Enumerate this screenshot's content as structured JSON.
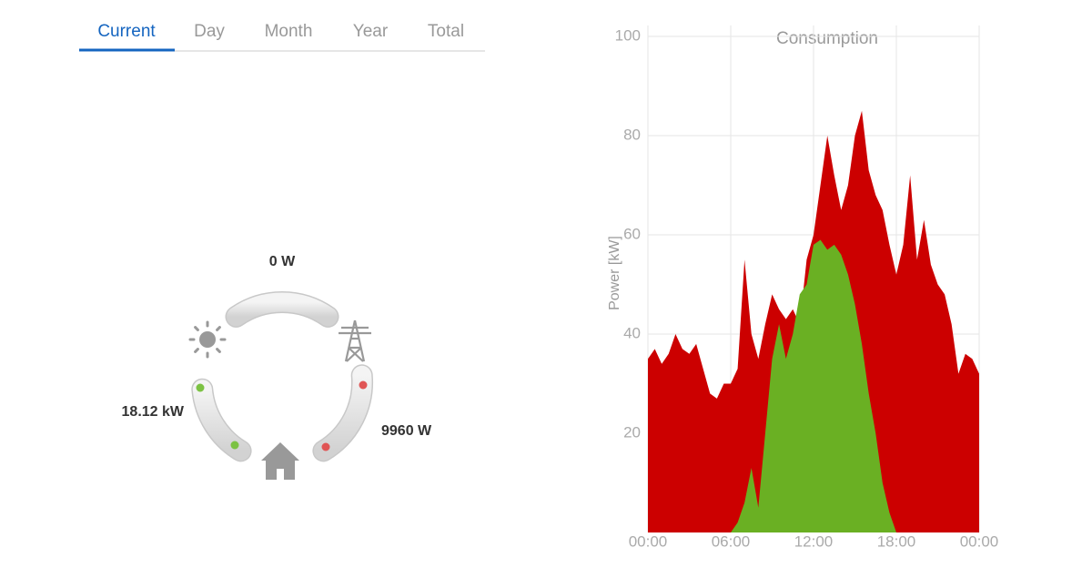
{
  "tabs": [
    "Current",
    "Day",
    "Month",
    "Year",
    "Total"
  ],
  "flow": {
    "top": "0 W",
    "left": "18.12 kW",
    "right": "9960 W"
  },
  "chart_data": {
    "type": "area",
    "title": "Consumption",
    "y_label": "Power [kW]",
    "x": [
      0,
      0.5,
      1,
      1.5,
      2,
      2.5,
      3,
      3.5,
      4,
      4.5,
      5,
      5.5,
      6,
      6.5,
      7,
      7.5,
      8,
      8.5,
      9,
      9.5,
      10,
      10.5,
      11,
      11.5,
      12,
      12.5,
      13,
      13.5,
      14,
      14.5,
      15,
      15.5,
      16,
      16.5,
      17,
      17.5,
      18,
      18.5,
      19,
      19.5,
      20,
      20.5,
      21,
      21.5,
      22,
      22.5,
      23,
      23.5,
      24
    ],
    "series": [
      {
        "color": "#cc0000",
        "values": [
          35,
          37,
          34,
          36,
          40,
          37,
          36,
          38,
          33,
          28,
          27,
          30,
          30,
          33,
          55,
          40,
          35,
          42,
          48,
          45,
          43,
          45,
          42,
          55,
          60,
          70,
          80,
          72,
          65,
          70,
          80,
          85,
          73,
          68,
          65,
          58,
          52,
          58,
          72,
          55,
          63,
          54,
          50,
          48,
          42,
          32,
          36,
          35,
          32
        ]
      },
      {
        "color": "#6ab023",
        "values": [
          0,
          0,
          0,
          0,
          0,
          0,
          0,
          0,
          0,
          0,
          0,
          0,
          0,
          2,
          6,
          13,
          5,
          20,
          35,
          42,
          35,
          40,
          48,
          50,
          58,
          59,
          57,
          58,
          56,
          52,
          46,
          38,
          28,
          20,
          10,
          4,
          0,
          0,
          0,
          0,
          0,
          0,
          0,
          0,
          0,
          0,
          0,
          0,
          0
        ]
      }
    ],
    "xlim": [
      0,
      24
    ],
    "xticks": [
      {
        "value": 0,
        "label": "00:00"
      },
      {
        "value": 6,
        "label": "06:00"
      },
      {
        "value": 12,
        "label": "12:00"
      },
      {
        "value": 18,
        "label": "18:00"
      },
      {
        "value": 24,
        "label": "00:00"
      }
    ],
    "ylim": [
      0,
      100
    ],
    "yticks": [
      20,
      40,
      60,
      80,
      100
    ],
    "grid": true
  }
}
